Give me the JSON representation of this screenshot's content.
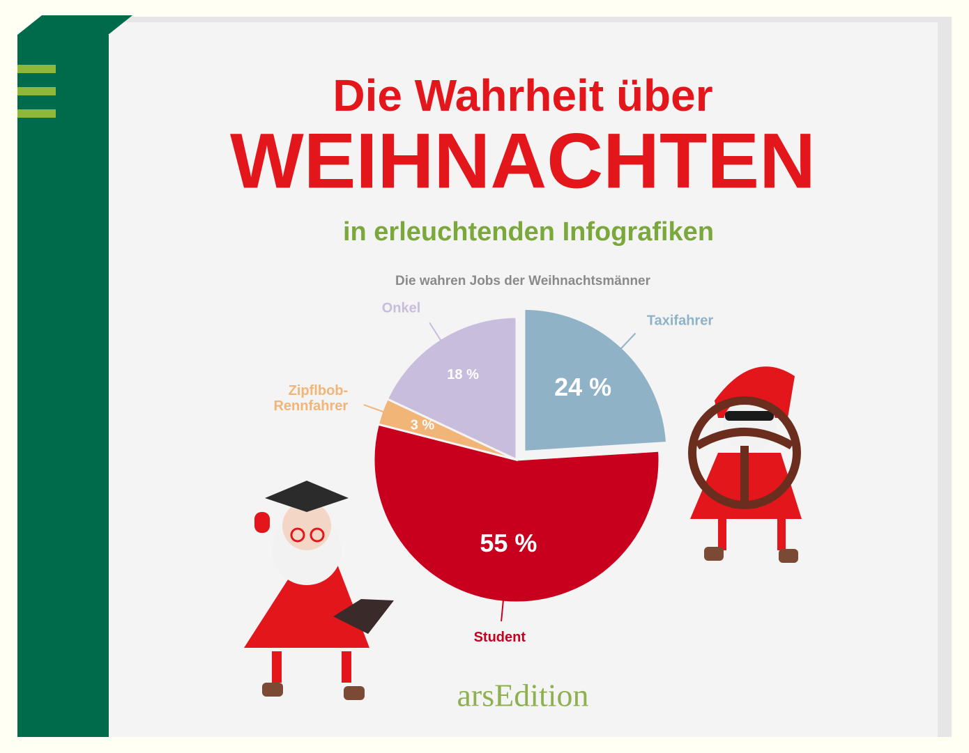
{
  "cover": {
    "title_line1": "Die Wahrheit über",
    "title_line2": "WEIHNACHTEN",
    "subtitle": "in erleuchtenden Infografiken",
    "publisher": "arsEdition"
  },
  "chart_data": {
    "type": "pie",
    "title": "Die wahren Jobs der Weihnachtsmänner",
    "categories": [
      "Taxifahrer",
      "Student",
      "Zipflbob-\nRennfahrer",
      "Onkel"
    ],
    "values": [
      24,
      55,
      3,
      18
    ],
    "value_labels": [
      "24 %",
      "55 %",
      "3 %",
      "18 %"
    ],
    "colors": [
      "#8fb2c6",
      "#c8001e",
      "#f1b578",
      "#c8bddc"
    ],
    "exploded": [
      true,
      false,
      false,
      false
    ]
  }
}
